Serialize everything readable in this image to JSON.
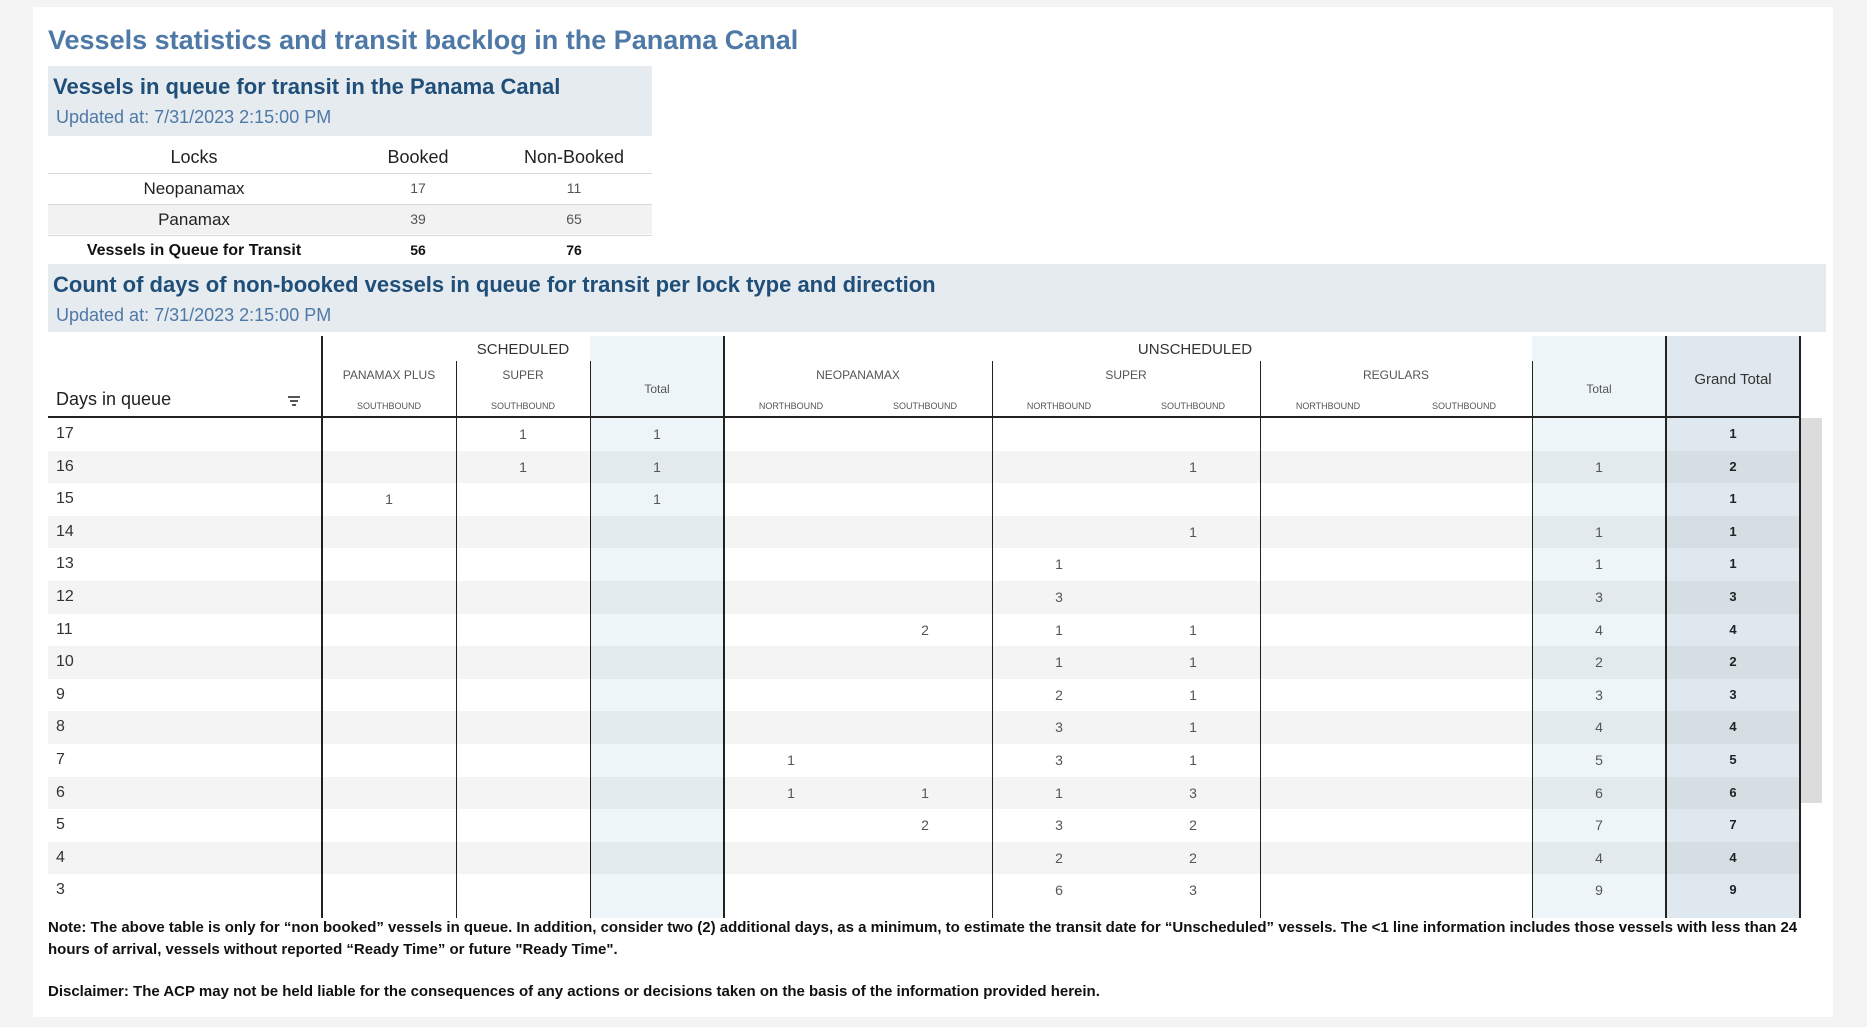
{
  "main_title": "Vessels statistics and transit backlog in the Panama Canal",
  "queue_table": {
    "title": "Vessels in queue for transit in the Panama Canal",
    "updated": "Updated at:  7/31/2023 2:15:00 PM",
    "columns": [
      "Locks",
      "Booked",
      "Non-Booked"
    ],
    "rows": [
      {
        "lock": "Neopanamax",
        "booked": "17",
        "non_booked": "11"
      },
      {
        "lock": "Panamax",
        "booked": "39",
        "non_booked": "65"
      },
      {
        "lock": "Vessels in Queue for Transit",
        "booked": "56",
        "non_booked": "76"
      }
    ]
  },
  "days_table": {
    "title": "Count of days of non-booked vessels in queue for transit per lock type and direction",
    "updated": "Updated at:  7/31/2023 2:15:00 PM",
    "row_header": "Days in queue",
    "groups": {
      "scheduled": "SCHEDULED",
      "unscheduled": "UNSCHEDULED",
      "grand_total": "Grand Total"
    },
    "subgroups": {
      "panamax_plus": "PANAMAX PLUS",
      "super": "SUPER",
      "neopanamax": "NEOPANAMAX",
      "super2": "SUPER",
      "regulars": "REGULARS"
    },
    "directions": {
      "sb": "SOUTHBOUND",
      "nb": "NORTHBOUND"
    },
    "total_label": "Total",
    "rows": [
      {
        "day": "17",
        "v": [
          "",
          "1",
          "1",
          "",
          "",
          "",
          "",
          "",
          "",
          "",
          "1"
        ]
      },
      {
        "day": "16",
        "v": [
          "",
          "1",
          "1",
          "",
          "",
          "",
          "1",
          "",
          "",
          "1",
          "2"
        ]
      },
      {
        "day": "15",
        "v": [
          "1",
          "",
          "1",
          "",
          "",
          "",
          "",
          "",
          "",
          "",
          "1"
        ]
      },
      {
        "day": "14",
        "v": [
          "",
          "",
          "",
          "",
          "",
          "",
          "1",
          "",
          "",
          "1",
          "1"
        ]
      },
      {
        "day": "13",
        "v": [
          "",
          "",
          "",
          "",
          "",
          "1",
          "",
          "",
          "",
          "1",
          "1"
        ]
      },
      {
        "day": "12",
        "v": [
          "",
          "",
          "",
          "",
          "",
          "3",
          "",
          "",
          "",
          "3",
          "3"
        ]
      },
      {
        "day": "11",
        "v": [
          "",
          "",
          "",
          "",
          "2",
          "1",
          "1",
          "",
          "",
          "4",
          "4"
        ]
      },
      {
        "day": "10",
        "v": [
          "",
          "",
          "",
          "",
          "",
          "1",
          "1",
          "",
          "",
          "2",
          "2"
        ]
      },
      {
        "day": "9",
        "v": [
          "",
          "",
          "",
          "",
          "",
          "2",
          "1",
          "",
          "",
          "3",
          "3"
        ]
      },
      {
        "day": "8",
        "v": [
          "",
          "",
          "",
          "",
          "",
          "3",
          "1",
          "",
          "",
          "4",
          "4"
        ]
      },
      {
        "day": "7",
        "v": [
          "",
          "",
          "",
          "1",
          "",
          "3",
          "1",
          "",
          "",
          "5",
          "5"
        ]
      },
      {
        "day": "6",
        "v": [
          "",
          "",
          "",
          "1",
          "1",
          "1",
          "3",
          "",
          "",
          "6",
          "6"
        ]
      },
      {
        "day": "5",
        "v": [
          "",
          "",
          "",
          "",
          "2",
          "3",
          "2",
          "",
          "",
          "7",
          "7"
        ]
      },
      {
        "day": "4",
        "v": [
          "",
          "",
          "",
          "",
          "",
          "2",
          "2",
          "",
          "",
          "4",
          "4"
        ]
      },
      {
        "day": "3",
        "v": [
          "",
          "",
          "",
          "",
          "",
          "6",
          "3",
          "",
          "",
          "9",
          "9"
        ]
      }
    ]
  },
  "note": "Note:  The above table is only for “non booked” vessels in queue. In addition, consider two (2) additional days, as a minimum, to estimate the transit date for “Unscheduled” vessels.  The <1 line information includes those vessels with less than 24 hours of arrival, vessels without reported “Ready Time” or future \"Ready Time\".",
  "disclaimer": "Disclaimer: The ACP may not be held liable for the consequences of any actions or decisions taken on the basis of the information provided herein.",
  "colors": {
    "title_blue": "#4e79a7",
    "header_navy": "#1f4e79",
    "header_bg": "#e6ebef",
    "total_band": "#eef5f9",
    "grand_band": "#dfe8ee"
  }
}
